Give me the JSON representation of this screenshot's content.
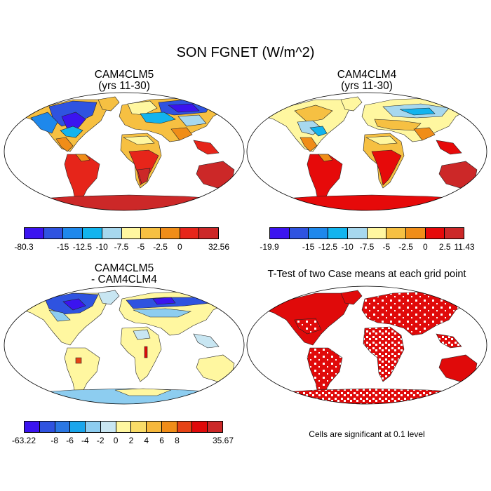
{
  "figure": {
    "title": "SON FGNET (W/m^2)",
    "panels": [
      {
        "title_line1": "CAM4CLM5",
        "title_line2": "(yrs 11-30)",
        "colorbar": {
          "colors": [
            "#3b14f0",
            "#2f53e0",
            "#1e88ec",
            "#12b4ee",
            "#a7d8ee",
            "#fff7a0",
            "#f6c042",
            "#f08d18",
            "#e6251a",
            "#cc2828"
          ],
          "labels": [
            "-80.3",
            "-15",
            "-12.5",
            "-10",
            "-7.5",
            "-5",
            "-2.5",
            "0",
            "32.56"
          ],
          "label_slots": [
            0,
            2,
            3,
            4,
            5,
            6,
            7,
            8,
            10
          ]
        }
      },
      {
        "title_line1": "CAM4CLM4",
        "title_line2": "(yrs 11-30)",
        "colorbar": {
          "colors": [
            "#3b14f0",
            "#2f53e0",
            "#1e88ec",
            "#12b4ee",
            "#a7d8ee",
            "#fff7a0",
            "#f6c042",
            "#f08d18",
            "#e60a0a",
            "#cc2828"
          ],
          "labels": [
            "-19.9",
            "-15",
            "-12.5",
            "-10",
            "-7.5",
            "-5",
            "-2.5",
            "0",
            "2.5",
            "11.43"
          ],
          "label_slots": [
            0,
            2,
            3,
            4,
            5,
            6,
            7,
            8,
            9,
            10
          ]
        }
      },
      {
        "title_line1": "CAM4CLM5",
        "title_line2": "- CAM4CLM4",
        "colorbar": {
          "colors": [
            "#3b14f0",
            "#2f53e0",
            "#2b78e4",
            "#1aa6ec",
            "#8dcdf0",
            "#c8e6f2",
            "#fff7a0",
            "#f9dc68",
            "#f6b83c",
            "#f08d18",
            "#e64316",
            "#e00a0a",
            "#cc2828"
          ],
          "labels": [
            "-63.22",
            "-8",
            "-6",
            "-4",
            "-2",
            "0",
            "2",
            "4",
            "6",
            "8",
            "35.67"
          ],
          "label_slots": [
            0,
            2,
            3,
            4,
            5,
            6,
            7,
            8,
            9,
            10,
            13
          ]
        }
      },
      {
        "title_line1": "T-Test of two Case means at each grid point",
        "note": "Cells are significant at 0.1 level"
      }
    ]
  }
}
